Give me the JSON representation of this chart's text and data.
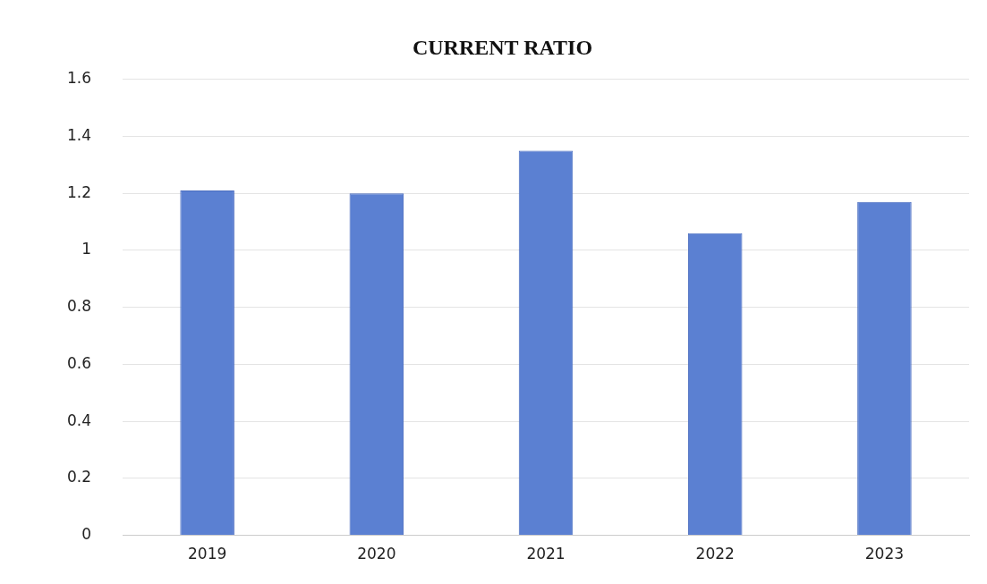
{
  "chart_data": {
    "type": "bar",
    "title": "CURRENT RATIO",
    "categories": [
      "2019",
      "2020",
      "2021",
      "2022",
      "2023"
    ],
    "values": [
      1.21,
      1.2,
      1.35,
      1.06,
      1.17
    ],
    "color": "#5b80d2",
    "ylim": [
      0,
      1.6
    ],
    "yticks": [
      0,
      0.2,
      0.4,
      0.6,
      0.8,
      1,
      1.2,
      1.4,
      1.6
    ],
    "grid": "y",
    "legend": false
  }
}
